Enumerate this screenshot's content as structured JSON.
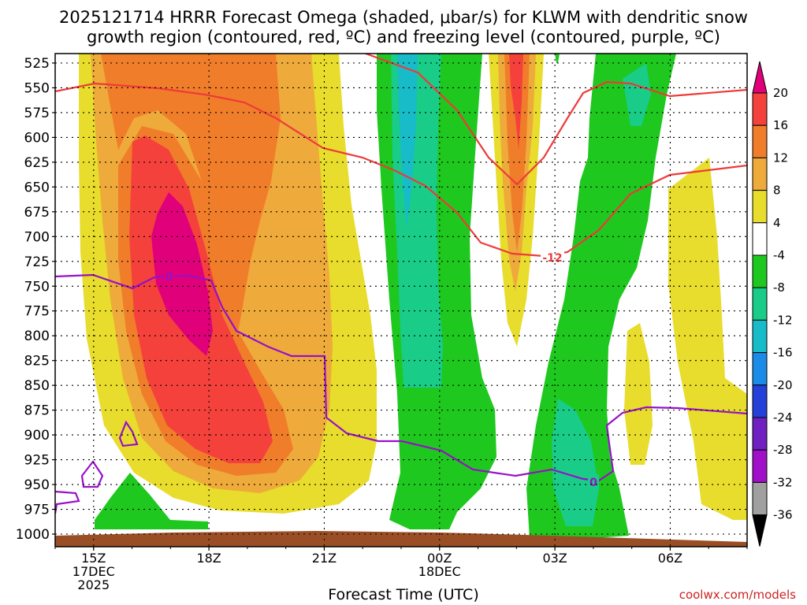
{
  "title_line1": "2025121714 HRRR Forecast Omega (shaded, μbar/s) for KLWM with dendritic snow",
  "title_line2": "growth region (contoured, red, ºC) and freezing level (contoured, purple, ºC)",
  "xlabel": "Forecast Time (UTC)",
  "credit": "coolwx.com/models",
  "chart_data": {
    "type": "heatmap",
    "title": "2025121714 HRRR Forecast Omega (shaded, μbar/s) for KLWM with dendritic snow growth region (contoured, red, ºC) and freezing level (contoured, purple, ºC)",
    "xlabel": "Forecast Time (UTC)",
    "ylabel": "",
    "y_scale": "pressure (hPa), inverted",
    "ylim": [
      1000,
      525
    ],
    "y_ticks": [
      525,
      550,
      575,
      600,
      625,
      650,
      675,
      700,
      725,
      750,
      775,
      800,
      825,
      850,
      875,
      900,
      925,
      950,
      975,
      1000
    ],
    "x_ticks": [
      {
        "hour": 15,
        "lines": [
          "15Z",
          "17DEC",
          "2025"
        ]
      },
      {
        "hour": 18,
        "lines": [
          "18Z"
        ]
      },
      {
        "hour": 21,
        "lines": [
          "21Z"
        ]
      },
      {
        "hour": 24,
        "lines": [
          "00Z",
          "18DEC"
        ]
      },
      {
        "hour": 27,
        "lines": [
          "03Z"
        ]
      },
      {
        "hour": 30,
        "lines": [
          "06Z"
        ]
      }
    ],
    "xlim": [
      14,
      32
    ],
    "grid": true,
    "colorbar": {
      "position": "right",
      "levels": [
        20,
        16,
        12,
        8,
        4,
        -4,
        -8,
        -12,
        -16,
        -20,
        -24,
        -28,
        -32,
        -36
      ],
      "colors": [
        "#e0007a",
        "#f4413c",
        "#f07d2a",
        "#eeaa3a",
        "#e8dc2c",
        "#ffffff",
        "#1ec81e",
        "#19cc88",
        "#17bcc8",
        "#1a8ce8",
        "#2440d8",
        "#7020c0",
        "#a010c8",
        "#a0a0a0",
        "#000000"
      ]
    },
    "omega_regions": [
      {
        "value_range": ">20",
        "color": "#e0007a",
        "description": "max upward motion core near 17Z, 650-775 hPa"
      },
      {
        "value_range": "4 to 20",
        "color": "#e8dc2c",
        "description": "broad positive omega 15Z-22Z"
      },
      {
        "value_range": "-4 to -16",
        "color": "#1ec81e",
        "description": "negative omega columns near 23Z-00Z and 03Z-05Z"
      }
    ],
    "contours": [
      {
        "name": "dendritic snow growth region",
        "color": "#ee3a3a",
        "label": "-12"
      },
      {
        "name": "freezing level",
        "color": "#9810c8",
        "label": "0"
      }
    ],
    "terrain_color": "#9a4e25"
  }
}
